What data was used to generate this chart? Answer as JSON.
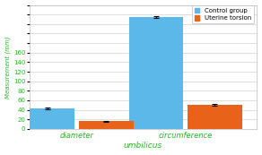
{
  "categories": [
    "diameter",
    "circumference"
  ],
  "control_group": [
    43,
    235
  ],
  "uterine_torsion": [
    16,
    50
  ],
  "control_errors": [
    1.5,
    2.5
  ],
  "torsion_errors": [
    1.0,
    1.5
  ],
  "control_color": "#5BB8E8",
  "torsion_color": "#E8621A",
  "xlabel": "umbilicus",
  "ylabel": "Measurement (mm)",
  "ylim": [
    0,
    260
  ],
  "yticks": [
    0,
    20,
    40,
    60,
    80,
    100,
    120,
    140,
    160,
    180,
    200,
    220,
    240,
    260
  ],
  "ytick_labels": [
    "0",
    "20",
    "40",
    "60",
    "80",
    "100",
    "120",
    "140",
    "160",
    "",
    "",
    "",
    "",
    ""
  ],
  "legend_labels": [
    "Control group",
    "Uterine torsion"
  ],
  "axis_color": "#22BB22",
  "xlabel_color": "#22BB22",
  "ylabel_color": "#22BB22",
  "tick_color": "#22BB22",
  "bar_width": 0.25,
  "x_positions": [
    0.22,
    0.72
  ],
  "xlim": [
    0.0,
    1.05
  ],
  "background_color": "#FFFFFF"
}
